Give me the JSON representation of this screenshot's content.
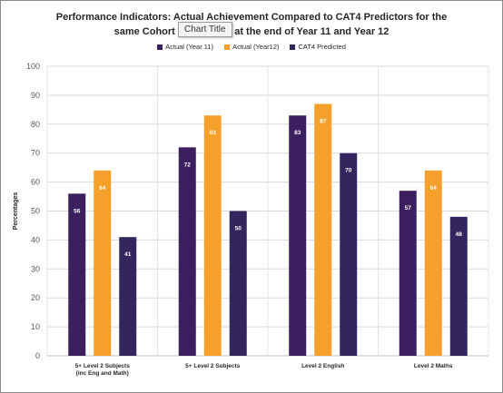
{
  "chart_data": {
    "type": "bar",
    "title_line1": "Performance Indicators: Actual Achievement Compared to CAT4 Predictors for the",
    "title_line2": "same Cohort of students at the end of Year 11 and Year 12",
    "tooltip": "Chart Title",
    "ylabel": "Percentages",
    "ylim": [
      0,
      100
    ],
    "yticks": [
      0,
      10,
      20,
      30,
      40,
      50,
      60,
      70,
      80,
      90,
      100
    ],
    "grid": true,
    "legend_position": "top",
    "categories": [
      [
        "5+ Level 2 Subjects",
        "(inc Eng and Math)"
      ],
      [
        "5+ Level 2 Subjects"
      ],
      [
        "Level 2 English"
      ],
      [
        "Level 2 Maths"
      ]
    ],
    "series": [
      {
        "name": "Actual (Year 11)",
        "color": "#3b1f5e",
        "values": [
          56,
          72,
          83,
          57
        ]
      },
      {
        "name": "Actual (Year12)",
        "color": "#f5a02a",
        "values": [
          64,
          83,
          87,
          64
        ]
      },
      {
        "name": "CAT4  Predicted",
        "color": "#33255e",
        "values": [
          41,
          50,
          70,
          48
        ]
      }
    ]
  }
}
